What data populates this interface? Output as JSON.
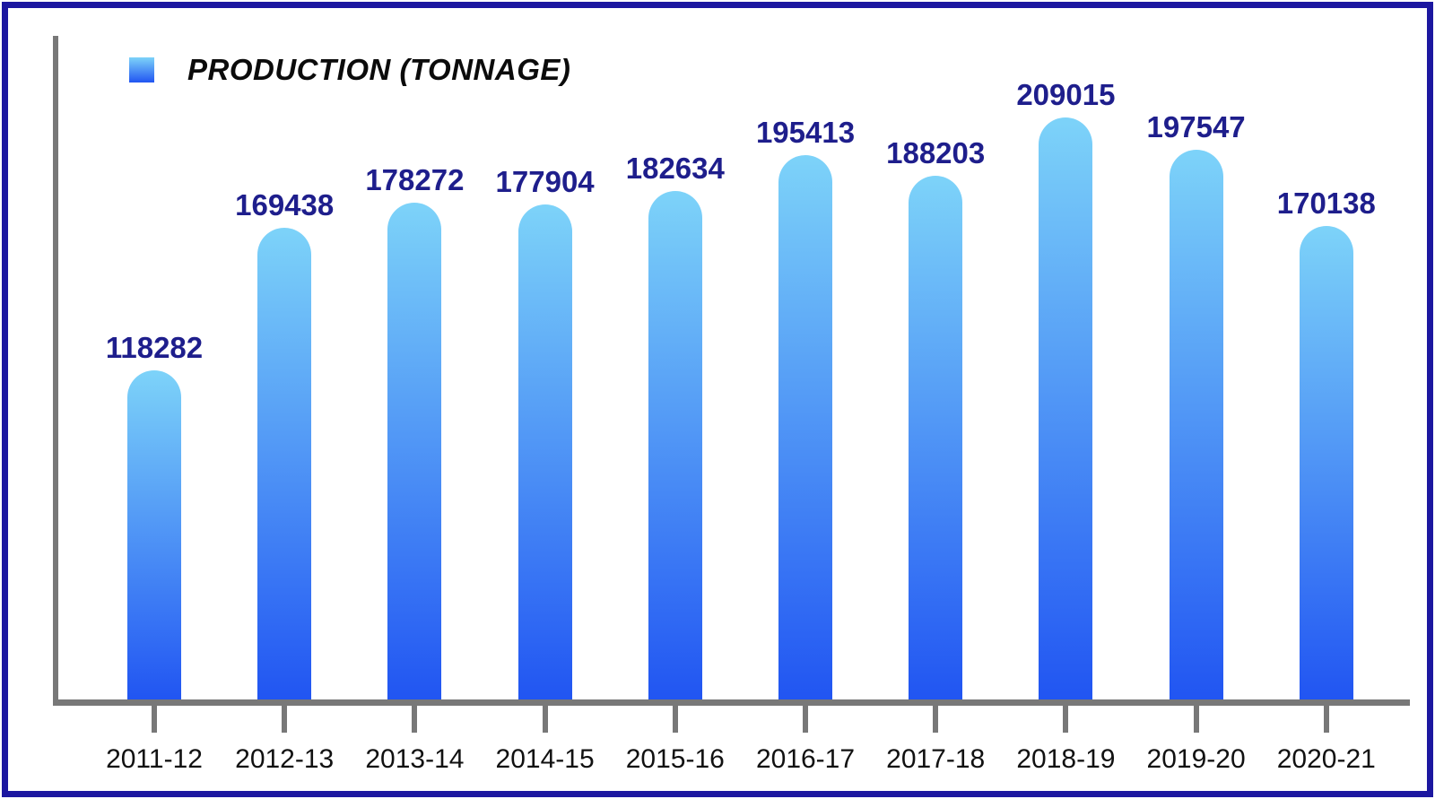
{
  "window": {
    "background": "#ffffff",
    "border_color": "#1c17a0"
  },
  "legend": {
    "label": "PRODUCTION (TONNAGE)",
    "swatch": {
      "top_color": "#7dd3f9",
      "bottom_color": "#2155f2"
    }
  },
  "chart_data": {
    "type": "bar",
    "title": "PRODUCTION (TONNAGE)",
    "series_name": "PRODUCTION (TONNAGE)",
    "categories": [
      "2011-12",
      "2012-13",
      "2013-14",
      "2014-15",
      "2015-16",
      "2016-17",
      "2017-18",
      "2018-19",
      "2019-20",
      "2020-21"
    ],
    "values": [
      118282,
      169438,
      178272,
      177904,
      182634,
      195413,
      188203,
      209015,
      197547,
      170138
    ],
    "xlabel": "",
    "ylabel": "",
    "ylim": [
      0,
      209015
    ],
    "grid": false,
    "y_axis_tick_labels": false,
    "legend_position": "top-left",
    "value_labels_shown": true,
    "colors": {
      "bar_gradient_top": "#7dd3f9",
      "bar_gradient_bottom": "#2155f2",
      "value_label": "#1e1e8c",
      "category_label": "#111111",
      "axis": "#787878"
    }
  }
}
